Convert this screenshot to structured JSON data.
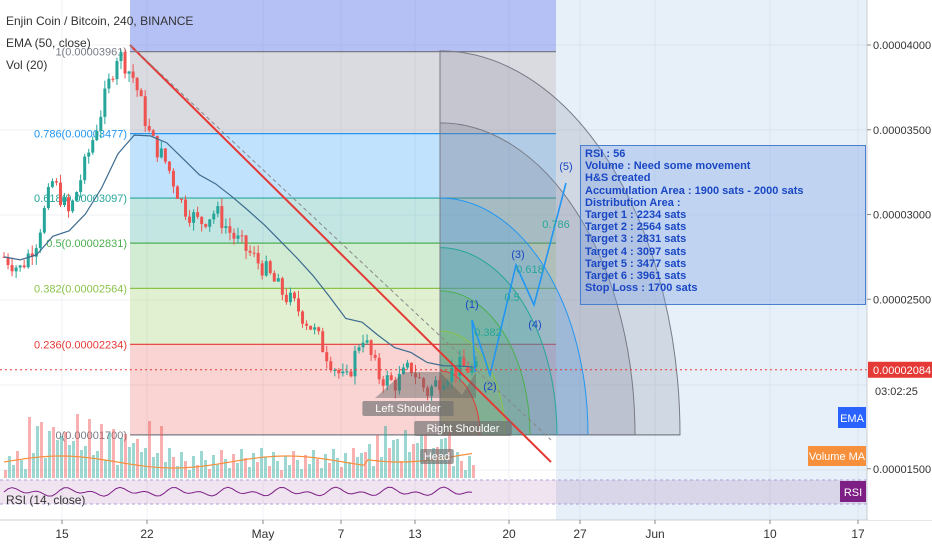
{
  "chart_data": {
    "type": "candlestick",
    "title": "Enjin Coin / Bitcoin, 240, BINANCE",
    "indicators": [
      "EMA (50, close)",
      "Vol (20)"
    ],
    "rsi_label": "RSI (14, close)",
    "x_ticks": [
      "15",
      "22",
      "May",
      "7",
      "13",
      "20",
      "27",
      "Jun",
      "10",
      "17"
    ],
    "y_ticks": [
      "0.00004000",
      "0.00003500",
      "0.00003000",
      "0.00002500",
      "0.00001500"
    ],
    "current_price": "0.00002084",
    "countdown": "03:02:25",
    "right_labels": {
      "ema": "EMA",
      "volume_ma": "Volume MA",
      "rsi": "RSI"
    },
    "fib_levels": [
      {
        "ratio": "1",
        "label": "1(0.00003961)",
        "value": 3.961e-05,
        "color": "#787b86"
      },
      {
        "ratio": "0.786",
        "label": "0.786(0.00003477)",
        "value": 3.477e-05,
        "color": "#2196f3"
      },
      {
        "ratio": "0.618",
        "label": "0.618(0.00003097)",
        "value": 3.097e-05,
        "color": "#26a69a"
      },
      {
        "ratio": "0.5",
        "label": "0.5(0.00002831)",
        "value": 2.831e-05,
        "color": "#4caf50"
      },
      {
        "ratio": "0.382",
        "label": "0.382(0.00002564)",
        "value": 2.564e-05,
        "color": "#8bc34a"
      },
      {
        "ratio": "0.236",
        "label": "0.236(0.00002234)",
        "value": 2.234e-05,
        "color": "#e53935"
      },
      {
        "ratio": "0",
        "label": "0(0.00001700)",
        "value": 1.7e-05,
        "color": "#787b86"
      }
    ],
    "pattern_labels": [
      "Left Shoulder",
      "Right Shoulder",
      "Head"
    ],
    "wave_labels": [
      {
        "label": "(1)",
        "x": 2.35e-05
      },
      {
        "label": "(2)",
        "x": 2.01e-05
      },
      {
        "label": "(3)",
        "x": 2.81e-05
      },
      {
        "label": "(4)",
        "x": 2.44e-05
      },
      {
        "label": "(5)",
        "x": 3.27e-05
      }
    ],
    "wave_fib_labels": [
      "0.382",
      "0.5",
      "0.618",
      "0.786"
    ],
    "note_lines": [
      "RSI : 56",
      "Volume : Need some movement",
      "H&S created",
      "Accumulation Area : 1900 sats - 2000 sats",
      "Distribution Area :",
      "Target 1 : 2234 sats",
      "Target 2 : 2564 sats",
      "Target 3 : 2831 sats",
      "Target 4 : 3097 sats",
      "Target 5 : 3477 sats",
      "Target 6 : 3961 sats",
      "Stop Loss : 1700 sats"
    ],
    "price_path_approx": [
      2.75e-05,
      2.68e-05,
      2.85e-05,
      3.2e-05,
      3e-05,
      3.3e-05,
      3.62e-05,
      3.96e-05,
      3.8e-05,
      3.45e-05,
      3.3e-05,
      3.05e-05,
      2.95e-05,
      3.02e-05,
      2.88e-05,
      2.78e-05,
      2.68e-05,
      2.55e-05,
      2.45e-05,
      2.32e-05,
      2.15e-05,
      2e-05,
      2.3e-05,
      2.05e-05,
      2e-05,
      2.1e-05,
      1.95e-05,
      2.05e-05,
      2.1e-05,
      2.08e-05
    ]
  },
  "colors": {
    "up": "#26a69a",
    "down": "#ef5350",
    "ema": "#3d6b8f",
    "trend": "#e53935",
    "price_tag": "#e53935",
    "ema_tag": "#2962ff",
    "vol_ma_tag": "#f7903d",
    "rsi_tag": "#7e1f86"
  }
}
